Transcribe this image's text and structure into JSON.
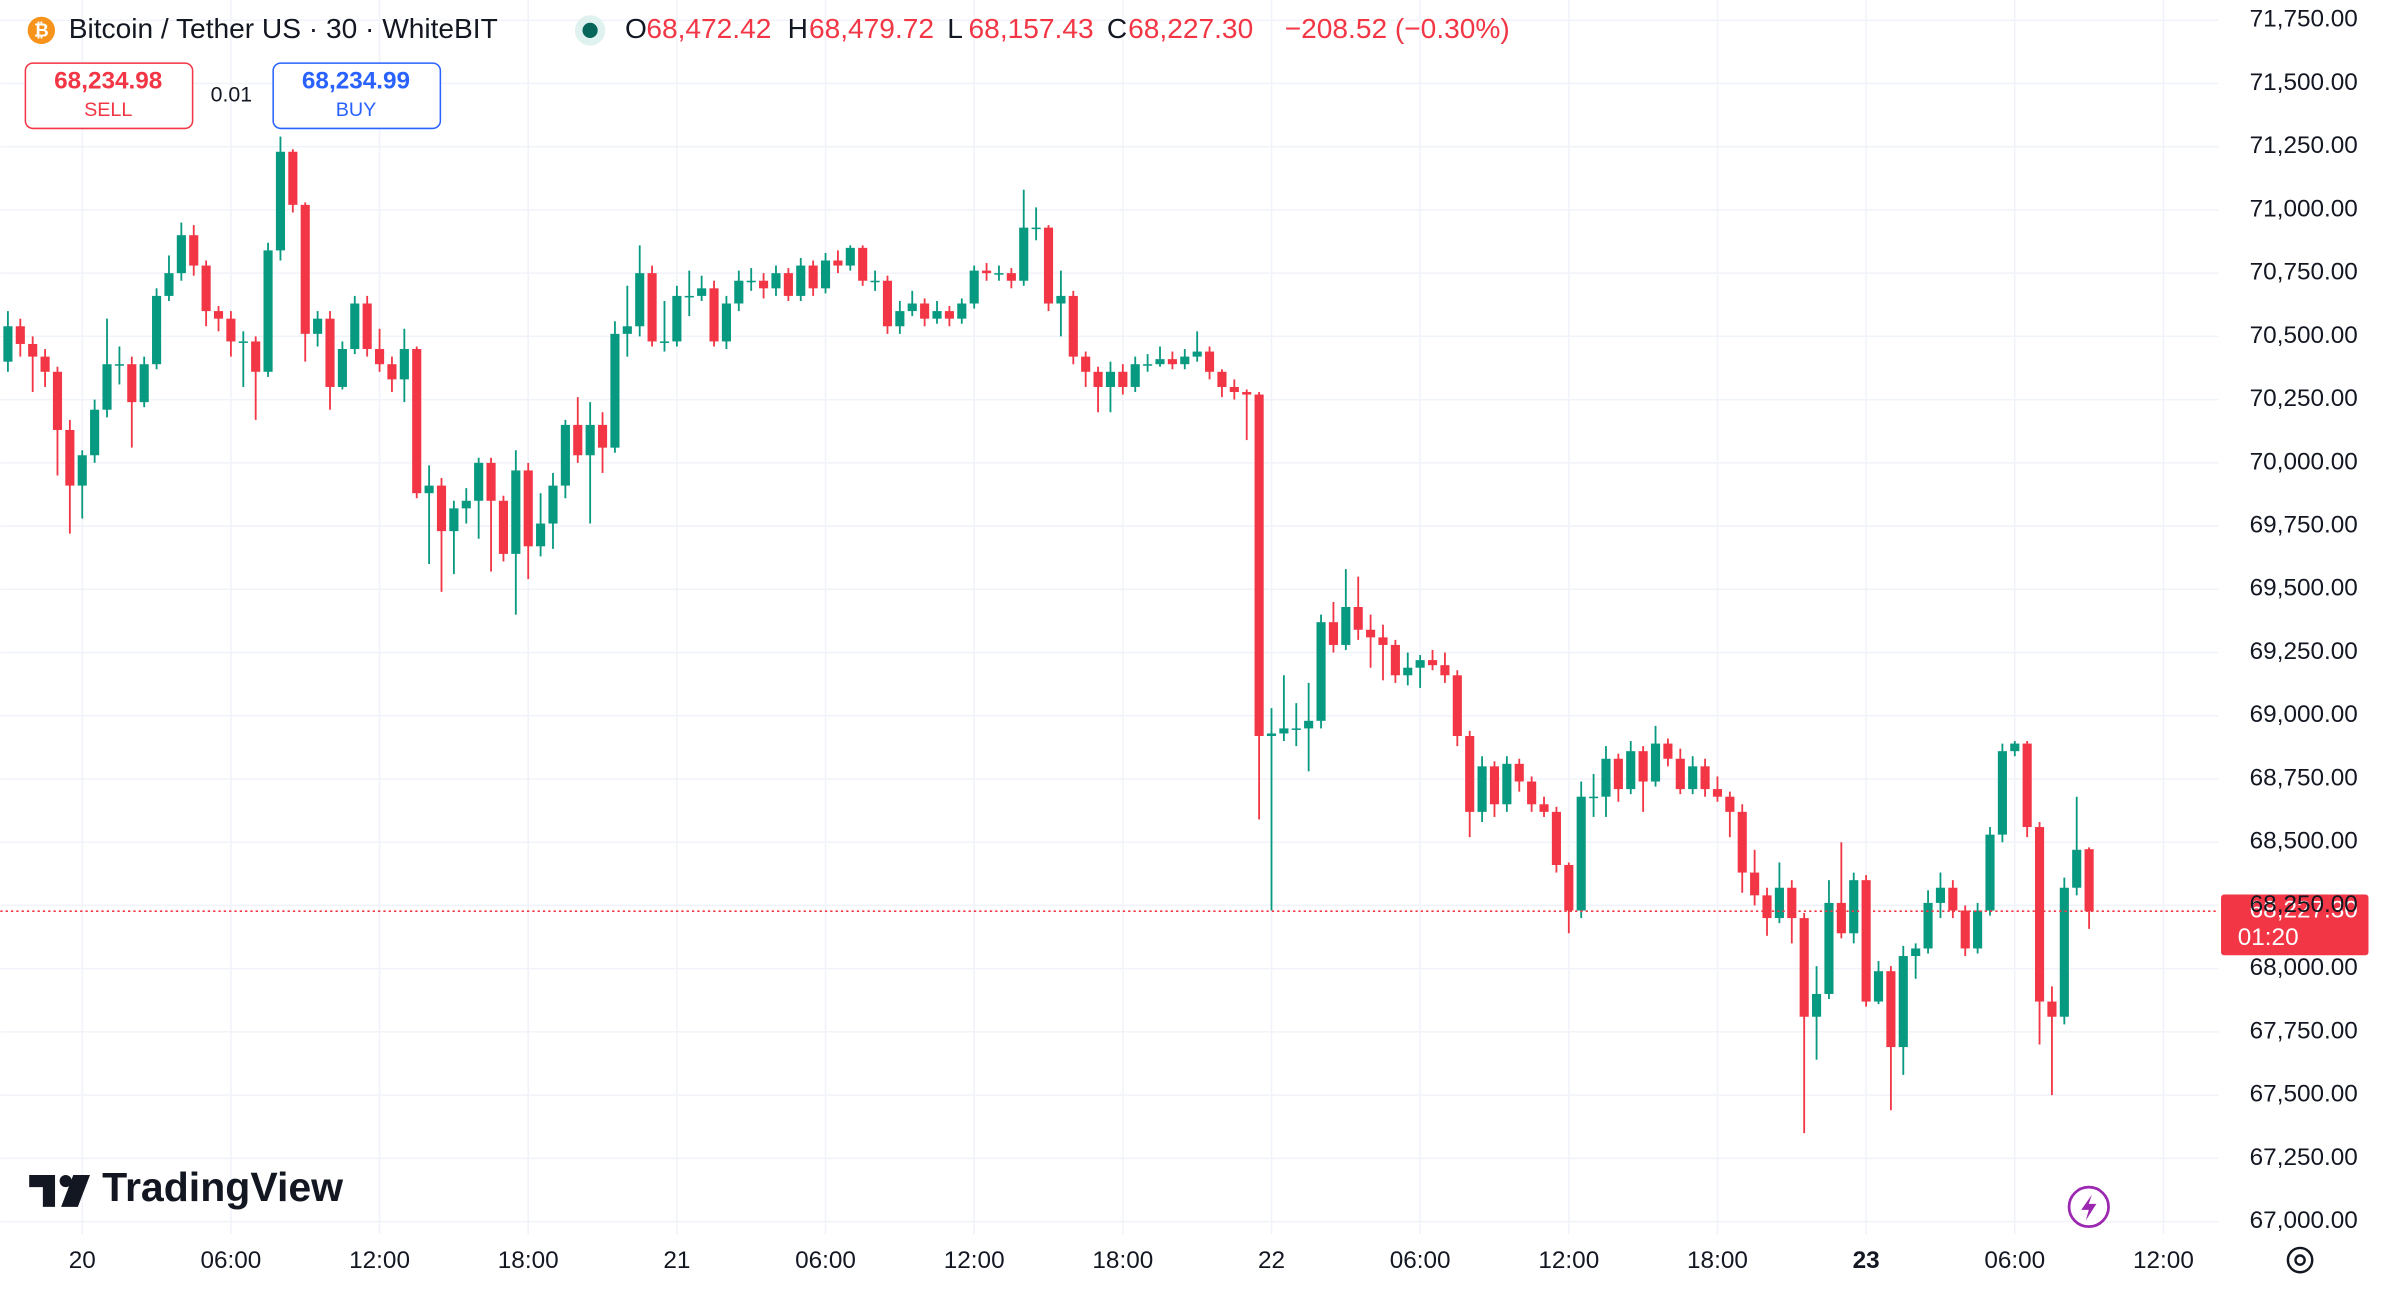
{
  "header": {
    "symbol": "Bitcoin / Tether US · 30 · WhiteBIT",
    "ohlc": [
      {
        "label": "O",
        "value": "68,472.42"
      },
      {
        "label": "H",
        "value": "68,479.72"
      },
      {
        "label": "L",
        "value": "68,157.43"
      },
      {
        "label": "C",
        "value": "68,227.30"
      }
    ],
    "change": "−208.52 (−0.30%)",
    "sell": {
      "price": "68,234.98",
      "label": "SELL"
    },
    "spread": "0.01",
    "buy": {
      "price": "68,234.99",
      "label": "BUY"
    }
  },
  "price_tag": {
    "price": "68,227.30",
    "countdown": "01:20"
  },
  "logo": "TradingView",
  "chart_data": {
    "type": "candlestick",
    "up_color": "#089981",
    "down_color": "#f23645",
    "grid": true,
    "ylim": [
      66950,
      71830
    ],
    "yticks": [
      {
        "value": 67000,
        "label": "67,000.00"
      },
      {
        "value": 67250,
        "label": "67,250.00"
      },
      {
        "value": 67500,
        "label": "67,500.00"
      },
      {
        "value": 67750,
        "label": "67,750.00"
      },
      {
        "value": 68000,
        "label": "68,000.00"
      },
      {
        "value": 68250,
        "label": "68,250.00"
      },
      {
        "value": 68500,
        "label": "68,500.00"
      },
      {
        "value": 68750,
        "label": "68,750.00"
      },
      {
        "value": 69000,
        "label": "69,000.00"
      },
      {
        "value": 69250,
        "label": "69,250.00"
      },
      {
        "value": 69500,
        "label": "69,500.00"
      },
      {
        "value": 69750,
        "label": "69,750.00"
      },
      {
        "value": 70000,
        "label": "70,000.00"
      },
      {
        "value": 70250,
        "label": "70,250.00"
      },
      {
        "value": 70500,
        "label": "70,500.00"
      },
      {
        "value": 70750,
        "label": "70,750.00"
      },
      {
        "value": 71000,
        "label": "71,000.00"
      },
      {
        "value": 71250,
        "label": "71,250.00"
      },
      {
        "value": 71500,
        "label": "71,500.00"
      },
      {
        "value": 71750,
        "label": "71,750.00"
      }
    ],
    "x_labels": [
      "20",
      "06:00",
      "12:00",
      "18:00",
      "21",
      "06:00",
      "12:00",
      "18:00",
      "22",
      "06:00",
      "12:00",
      "18:00",
      "23",
      "06:00",
      "12:00"
    ],
    "series": [
      {
        "name": "Bitcoin / Tether US",
        "open": [
          70400,
          70540,
          70470,
          70420,
          70360,
          70130,
          69910,
          70030,
          70210,
          70390,
          70390,
          70240,
          70390,
          70660,
          70750,
          70900,
          70780,
          70600,
          70570,
          70480,
          70480,
          70360,
          70840,
          71230,
          71020,
          70510,
          70570,
          70300,
          70450,
          70630,
          70450,
          70390,
          70330,
          70450,
          69880,
          69910,
          69730,
          69820,
          69850,
          70000,
          69850,
          69640,
          69970,
          69670,
          69760,
          69910,
          70150,
          70030,
          70150,
          70060,
          70510,
          70540,
          70750,
          70480,
          70480,
          70660,
          70660,
          70690,
          70480,
          70630,
          70720,
          70720,
          70690,
          70750,
          70660,
          70780,
          70690,
          70800,
          70780,
          70850,
          70720,
          70720,
          70540,
          70600,
          70630,
          70570,
          70600,
          70570,
          70630,
          70760,
          70750,
          70750,
          70720,
          70930,
          70930,
          70630,
          70660,
          70420,
          70360,
          70300,
          70360,
          70300,
          70390,
          70390,
          70410,
          70390,
          70420,
          70440,
          70360,
          70300,
          70280,
          70270,
          68920,
          68930,
          68950,
          68950,
          68980,
          69370,
          69280,
          69430,
          69340,
          69310,
          69280,
          69160,
          69190,
          69220,
          69200,
          69160,
          68920,
          68620,
          68800,
          68650,
          68810,
          68740,
          68650,
          68620,
          68410,
          68230,
          68680,
          68680,
          68830,
          68710,
          68860,
          68740,
          68890,
          68830,
          68710,
          68800,
          68710,
          68680,
          68620,
          68380,
          68290,
          68200,
          68320,
          68200,
          67810,
          67900,
          68260,
          68140,
          68350,
          67870,
          67990,
          67690,
          68050,
          68080,
          68260,
          68320,
          68230,
          68080,
          68230,
          68530,
          68860,
          68890,
          68560,
          67870,
          67810,
          68320,
          68472.42
        ],
        "high": [
          70600,
          70570,
          70500,
          70450,
          70380,
          70170,
          70050,
          70250,
          70570,
          70460,
          70420,
          70420,
          70690,
          70820,
          70950,
          70940,
          70800,
          70620,
          70600,
          70520,
          70500,
          70870,
          71290,
          71240,
          71030,
          70600,
          70600,
          70480,
          70660,
          70660,
          70530,
          70420,
          70530,
          70460,
          69990,
          69940,
          69850,
          69900,
          70020,
          70020,
          69870,
          70050,
          70000,
          69880,
          69960,
          70170,
          70260,
          70240,
          70200,
          70560,
          70700,
          70860,
          70780,
          70640,
          70700,
          70760,
          70740,
          70720,
          70660,
          70760,
          70770,
          70750,
          70780,
          70770,
          70810,
          70800,
          70830,
          70840,
          70860,
          70860,
          70760,
          70740,
          70640,
          70680,
          70650,
          70640,
          70620,
          70650,
          70780,
          70790,
          70780,
          70770,
          71080,
          71010,
          70940,
          70760,
          70680,
          70440,
          70380,
          70400,
          70390,
          70420,
          70430,
          70460,
          70440,
          70450,
          70520,
          70460,
          70370,
          70330,
          70290,
          70280,
          69030,
          69160,
          69050,
          69130,
          69400,
          69450,
          69580,
          69550,
          69400,
          69360,
          69300,
          69250,
          69240,
          69260,
          69250,
          69180,
          68940,
          68840,
          68820,
          68840,
          68830,
          68760,
          68680,
          68640,
          68420,
          68740,
          68770,
          68880,
          68850,
          68900,
          68880,
          68960,
          68910,
          68870,
          68840,
          68830,
          68760,
          68700,
          68650,
          68470,
          68320,
          68420,
          68350,
          68220,
          68010,
          68350,
          68500,
          68380,
          68370,
          68030,
          68010,
          68090,
          68100,
          68310,
          68380,
          68350,
          68250,
          68260,
          68560,
          68890,
          68900,
          68900,
          68580,
          67930,
          68360,
          68680,
          68479.72
        ],
        "low": [
          70360,
          70420,
          70280,
          70300,
          69950,
          69720,
          69780,
          70000,
          70180,
          70310,
          70060,
          70220,
          70370,
          70640,
          70720,
          70740,
          70540,
          70520,
          70420,
          70300,
          70170,
          70340,
          70800,
          70990,
          70400,
          70460,
          70210,
          70290,
          70430,
          70420,
          70360,
          70280,
          70240,
          69860,
          69600,
          69490,
          69560,
          69760,
          69700,
          69570,
          69610,
          69400,
          69540,
          69630,
          69660,
          69860,
          70000,
          69760,
          69960,
          70040,
          70420,
          70500,
          70460,
          70440,
          70460,
          70580,
          70640,
          70460,
          70450,
          70600,
          70680,
          70650,
          70660,
          70640,
          70640,
          70660,
          70670,
          70750,
          70760,
          70700,
          70680,
          70510,
          70510,
          70580,
          70540,
          70550,
          70540,
          70550,
          70610,
          70720,
          70720,
          70690,
          70700,
          70880,
          70600,
          70500,
          70390,
          70300,
          70200,
          70200,
          70270,
          70280,
          70360,
          70380,
          70370,
          70370,
          70400,
          70330,
          70260,
          70250,
          70090,
          68590,
          68230,
          68900,
          68880,
          68780,
          68950,
          69250,
          69260,
          69300,
          69190,
          69140,
          69130,
          69120,
          69110,
          69180,
          69130,
          68880,
          68520,
          68580,
          68600,
          68620,
          68700,
          68620,
          68600,
          68380,
          68140,
          68200,
          68600,
          68600,
          68660,
          68690,
          68620,
          68720,
          68800,
          68690,
          68690,
          68680,
          68660,
          68520,
          68300,
          68250,
          68130,
          68180,
          68100,
          67350,
          67640,
          67880,
          68120,
          68100,
          67850,
          67860,
          67440,
          67580,
          67960,
          68060,
          68200,
          68200,
          68050,
          68060,
          68210,
          68500,
          68840,
          68520,
          67700,
          67500,
          67780,
          68290,
          68157.43
        ],
        "close": [
          70540,
          70470,
          70420,
          70360,
          70130,
          69910,
          70030,
          70210,
          70390,
          70390,
          70240,
          70390,
          70660,
          70750,
          70900,
          70780,
          70600,
          70570,
          70480,
          70480,
          70360,
          70840,
          71230,
          71020,
          70510,
          70570,
          70300,
          70450,
          70630,
          70450,
          70390,
          70330,
          70450,
          69880,
          69910,
          69730,
          69820,
          69850,
          70000,
          69850,
          69640,
          69970,
          69670,
          69760,
          69910,
          70150,
          70030,
          70150,
          70060,
          70510,
          70540,
          70750,
          70480,
          70480,
          70660,
          70660,
          70690,
          70480,
          70630,
          70720,
          70720,
          70690,
          70750,
          70660,
          70780,
          70690,
          70800,
          70780,
          70850,
          70720,
          70720,
          70540,
          70600,
          70630,
          70570,
          70600,
          70570,
          70630,
          70760,
          70750,
          70750,
          70720,
          70930,
          70930,
          70630,
          70660,
          70420,
          70360,
          70300,
          70360,
          70300,
          70390,
          70390,
          70410,
          70390,
          70420,
          70440,
          70360,
          70300,
          70280,
          70270,
          68920,
          68930,
          68950,
          68950,
          68980,
          69370,
          69280,
          69430,
          69340,
          69310,
          69280,
          69160,
          69190,
          69220,
          69200,
          69160,
          68920,
          68620,
          68800,
          68650,
          68810,
          68740,
          68650,
          68620,
          68410,
          68230,
          68680,
          68680,
          68830,
          68710,
          68860,
          68740,
          68890,
          68830,
          68710,
          68800,
          68710,
          68680,
          68620,
          68380,
          68290,
          68200,
          68320,
          68200,
          67810,
          67900,
          68260,
          68140,
          68350,
          67870,
          67990,
          67690,
          68050,
          68080,
          68260,
          68320,
          68230,
          68080,
          68230,
          68530,
          68860,
          68890,
          68560,
          67870,
          67810,
          68320,
          68470,
          68227.3
        ]
      }
    ]
  }
}
